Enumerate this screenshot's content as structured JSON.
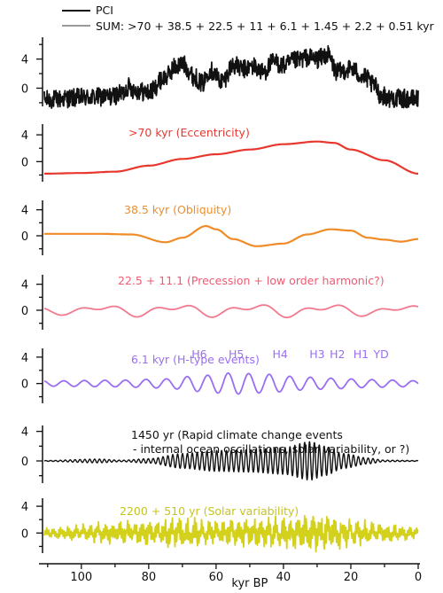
{
  "chart_data": {
    "type": "line",
    "xlabel": "kyr BP",
    "x_ticks": [
      100,
      80,
      60,
      40,
      20,
      0
    ],
    "xlim": [
      111,
      0
    ],
    "legend": {
      "placement": "top",
      "entries": [
        {
          "label": "PCI",
          "color": "#111111"
        },
        {
          "label": "SUM: >70 + 38.5 + 22.5 + 11 + 6.1 + 1.45 + 2.2 + 0.51 kyr",
          "color": "#9a9a9a"
        }
      ]
    },
    "panels": [
      {
        "key": "pci",
        "label_lines": [],
        "label_color": "#111111",
        "line_color": "#111111",
        "y_ticks": [
          4,
          0
        ],
        "ylim": [
          -2.5,
          7
        ],
        "series": {
          "name": "PCI",
          "kind": "noisy",
          "envelope": [
            [
              111,
              -1.6
            ],
            [
              100,
              -1.3
            ],
            [
              92,
              -1.2
            ],
            [
              88,
              -0.8
            ],
            [
              86,
              0.2
            ],
            [
              84,
              -0.3
            ],
            [
              80,
              -0.6
            ],
            [
              75,
              1.5
            ],
            [
              72,
              3.0
            ],
            [
              70,
              3.3
            ],
            [
              66,
              1.4
            ],
            [
              64,
              0.6
            ],
            [
              62,
              2.5
            ],
            [
              58,
              1.0
            ],
            [
              55,
              3.2
            ],
            [
              52,
              2.6
            ],
            [
              49,
              3.0
            ],
            [
              46,
              2.2
            ],
            [
              43,
              3.6
            ],
            [
              40,
              3.1
            ],
            [
              36,
              3.8
            ],
            [
              33,
              4.2
            ],
            [
              30,
              4.0
            ],
            [
              27,
              4.6
            ],
            [
              24,
              2.2
            ],
            [
              20,
              2.7
            ],
            [
              16,
              1.5
            ],
            [
              13,
              0.3
            ],
            [
              11,
              -1.0
            ],
            [
              8,
              -1.4
            ],
            [
              0,
              -1.5
            ]
          ],
          "noise_amp": 1.3
        }
      },
      {
        "key": "ecc",
        "label_lines": [
          ">70 kyr (Eccentricity)"
        ],
        "label_color": "#e8382e",
        "line_color": "#e8382e",
        "y_ticks": [
          4,
          0
        ],
        "ylim": [
          -3,
          6
        ],
        "series": {
          "name": ">70 kyr (Eccentricity)",
          "kind": "smooth",
          "points": [
            [
              111,
              -1.8
            ],
            [
              100,
              -1.7
            ],
            [
              90,
              -1.5
            ],
            [
              80,
              -0.6
            ],
            [
              70,
              0.4
            ],
            [
              60,
              1.1
            ],
            [
              50,
              1.8
            ],
            [
              40,
              2.6
            ],
            [
              30,
              3.0
            ],
            [
              25,
              2.8
            ],
            [
              20,
              1.8
            ],
            [
              10,
              0.2
            ],
            [
              0,
              -1.8
            ]
          ]
        }
      },
      {
        "key": "obl",
        "label_lines": [
          "38.5 kyr (Obliquity)"
        ],
        "label_color": "#f08c28",
        "line_color": "#f08c28",
        "y_ticks": [
          4,
          0
        ],
        "ylim": [
          -3,
          6
        ],
        "series": {
          "name": "38.5 kyr (Obliquity)",
          "kind": "smooth",
          "points": [
            [
              111,
              0.3
            ],
            [
              95,
              0.3
            ],
            [
              85,
              0.2
            ],
            [
              75,
              -1.0
            ],
            [
              70,
              -0.3
            ],
            [
              63,
              1.5
            ],
            [
              60,
              1.0
            ],
            [
              55,
              -0.5
            ],
            [
              48,
              -1.6
            ],
            [
              40,
              -1.2
            ],
            [
              33,
              0.2
            ],
            [
              26,
              1.0
            ],
            [
              20,
              0.8
            ],
            [
              15,
              -0.3
            ],
            [
              10,
              -0.6
            ],
            [
              5,
              -0.9
            ],
            [
              0,
              -0.5
            ]
          ]
        }
      },
      {
        "key": "prec",
        "label_lines": [
          "22.5 + 11.1 (Precession + low order harmonic?)"
        ],
        "label_color": "#f05a72",
        "line_color": "#f27a8e",
        "y_ticks": [
          4,
          0
        ],
        "ylim": [
          -3,
          6
        ],
        "series": {
          "name": "22.5 + 11.1 (Precession + low order harmonic?)",
          "kind": "osc",
          "components": [
            {
              "period": 22.5,
              "amp": 0.6,
              "phase": 0.4
            },
            {
              "period": 11.1,
              "amp": 0.45,
              "phase": 1.3
            }
          ],
          "offset": 0.0,
          "amp_env": [
            [
              111,
              0.7
            ],
            [
              80,
              1.0
            ],
            [
              40,
              1.1
            ],
            [
              0,
              0.8
            ]
          ]
        }
      },
      {
        "key": "h",
        "label_lines": [
          "6.1 kyr (H-type events)"
        ],
        "label_color": "#9a6ef2",
        "line_color": "#9a6ef2",
        "y_ticks": [
          4,
          0
        ],
        "ylim": [
          -3,
          6
        ],
        "event_labels": [
          {
            "label": "H6",
            "x": 65
          },
          {
            "label": "H5",
            "x": 54
          },
          {
            "label": "H4",
            "x": 41
          },
          {
            "label": "H3",
            "x": 30
          },
          {
            "label": "H2",
            "x": 24
          },
          {
            "label": "H1",
            "x": 17
          },
          {
            "label": "YD",
            "x": 11
          }
        ],
        "series": {
          "name": "6.1 kyr (H-type events)",
          "kind": "osc",
          "components": [
            {
              "period": 6.1,
              "amp": 1.0,
              "phase": 0.0
            }
          ],
          "offset": 0.0,
          "amp_env": [
            [
              111,
              0.4
            ],
            [
              90,
              0.5
            ],
            [
              75,
              0.7
            ],
            [
              65,
              1.2
            ],
            [
              55,
              1.6
            ],
            [
              45,
              1.4
            ],
            [
              35,
              1.0
            ],
            [
              25,
              0.8
            ],
            [
              15,
              0.6
            ],
            [
              5,
              0.5
            ],
            [
              0,
              0.4
            ]
          ]
        }
      },
      {
        "key": "rapid",
        "label_lines": [
          "1450 yr (Rapid climate change events",
          "- internal ocean oscillations, solar variability, or ?)"
        ],
        "label_color": "#111111",
        "line_color": "#111111",
        "y_ticks": [
          4,
          0
        ],
        "ylim": [
          -3,
          6
        ],
        "series": {
          "name": "1450 yr (Rapid climate change events - internal ocean oscillations, solar variability, or ?)",
          "kind": "osc",
          "components": [
            {
              "period": 1.45,
              "amp": 1.0,
              "phase": 0.0
            }
          ],
          "offset": 0.0,
          "amp_env": [
            [
              111,
              0.05
            ],
            [
              95,
              0.25
            ],
            [
              88,
              0.1
            ],
            [
              80,
              0.3
            ],
            [
              70,
              1.0
            ],
            [
              60,
              1.4
            ],
            [
              50,
              1.5
            ],
            [
              40,
              1.8
            ],
            [
              32,
              2.6
            ],
            [
              28,
              2.0
            ],
            [
              22,
              1.0
            ],
            [
              15,
              0.4
            ],
            [
              10,
              0.1
            ],
            [
              0,
              0.05
            ]
          ]
        }
      },
      {
        "key": "solar",
        "label_lines": [
          "2200 + 510 yr (Solar variability)"
        ],
        "label_color": "#c6c41e",
        "line_color": "#d4d11c",
        "y_ticks": [
          4,
          0
        ],
        "ylim": [
          -3,
          6
        ],
        "series": {
          "name": "2200 + 510 yr (Solar variability)",
          "kind": "noisyosc",
          "components": [
            {
              "period": 2.2,
              "amp": 0.6,
              "phase": 0.3
            },
            {
              "period": 0.51,
              "amp": 0.8,
              "phase": 0.9
            }
          ],
          "offset": 0.0,
          "amp_env": [
            [
              111,
              0.5
            ],
            [
              90,
              1.0
            ],
            [
              70,
              1.3
            ],
            [
              55,
              1.3
            ],
            [
              40,
              1.5
            ],
            [
              30,
              1.8
            ],
            [
              20,
              1.3
            ],
            [
              10,
              0.8
            ],
            [
              0,
              0.6
            ]
          ]
        }
      }
    ]
  }
}
